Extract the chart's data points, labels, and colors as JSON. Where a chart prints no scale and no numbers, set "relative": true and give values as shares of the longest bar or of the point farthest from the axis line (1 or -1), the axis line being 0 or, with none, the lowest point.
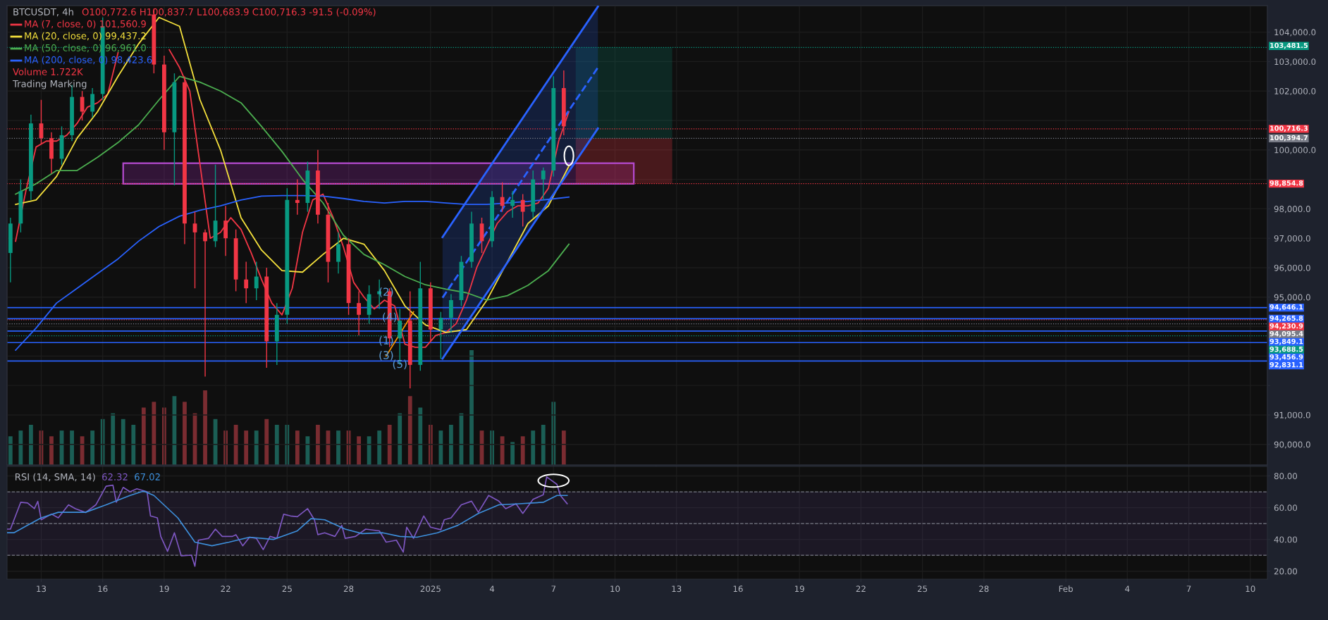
{
  "chart_data": [
    {
      "type": "candlestick",
      "title": "BTCUSDT, 4h",
      "subtitle": "O100,772.6 H100,837.7 L100,683.9 C100,716.3 -91.5 (-0.09%)",
      "x": [
        "2024-12-11T12:00",
        "2024-12-12T00:00",
        "2024-12-12T12:00",
        "2024-12-13T00:00",
        "2024-12-13T12:00",
        "2024-12-14T00:00",
        "2024-12-14T12:00",
        "2024-12-15T00:00",
        "2024-12-15T12:00",
        "2024-12-16T00:00",
        "2024-12-18T12:00",
        "2024-12-19T00:00",
        "2024-12-19T12:00",
        "2024-12-20T00:00",
        "2024-12-20T12:00",
        "2024-12-21T00:00",
        "2024-12-21T12:00",
        "2024-12-22T00:00",
        "2024-12-22T12:00",
        "2024-12-23T00:00",
        "2024-12-23T12:00",
        "2024-12-24T00:00",
        "2024-12-24T12:00",
        "2024-12-25T00:00",
        "2024-12-25T12:00",
        "2024-12-26T00:00",
        "2024-12-26T12:00",
        "2024-12-27T00:00",
        "2024-12-27T12:00",
        "2024-12-28T00:00",
        "2024-12-28T12:00",
        "2024-12-29T00:00",
        "2024-12-29T12:00",
        "2024-12-30T00:00",
        "2024-12-30T12:00",
        "2024-12-31T00:00",
        "2024-12-31T12:00",
        "2025-01-01T00:00",
        "2025-01-01T12:00",
        "2025-01-02T00:00",
        "2025-01-02T12:00",
        "2025-01-03T00:00",
        "2025-01-03T12:00",
        "2025-01-04T00:00",
        "2025-01-04T12:00",
        "2025-01-05T00:00",
        "2025-01-05T12:00",
        "2025-01-06T00:00",
        "2025-01-06T12:00",
        "2025-01-07T00:00",
        "2025-01-07T12:00"
      ],
      "ohlc": [
        [
          96500,
          97700,
          95500,
          97500
        ],
        [
          97500,
          99000,
          97200,
          98600
        ],
        [
          98600,
          101200,
          98300,
          100900
        ],
        [
          100900,
          101700,
          100200,
          100400
        ],
        [
          100400,
          100600,
          99200,
          99700
        ],
        [
          99700,
          100800,
          99500,
          100500
        ],
        [
          100500,
          102200,
          100300,
          101800
        ],
        [
          101800,
          102000,
          101000,
          101300
        ],
        [
          101300,
          102100,
          101100,
          101900
        ],
        [
          101900,
          104500,
          101700,
          104200
        ],
        [
          104600,
          104800,
          102600,
          102900
        ],
        [
          102900,
          103200,
          100000,
          100600
        ],
        [
          100600,
          102600,
          98800,
          102300
        ],
        [
          102300,
          102500,
          96800,
          97500
        ],
        [
          97500,
          97900,
          95300,
          97200
        ],
        [
          97200,
          97300,
          92300,
          96900
        ],
        [
          96900,
          99500,
          96700,
          97600
        ],
        [
          97600,
          98100,
          96400,
          97000
        ],
        [
          97000,
          97300,
          95200,
          95600
        ],
        [
          95600,
          96200,
          94800,
          95300
        ],
        [
          95300,
          96200,
          94900,
          95700
        ],
        [
          95700,
          96000,
          92600,
          93500
        ],
        [
          93500,
          94800,
          92700,
          94400
        ],
        [
          94400,
          98700,
          94100,
          98300
        ],
        [
          98300,
          99000,
          97800,
          98200
        ],
        [
          98200,
          99600,
          97900,
          99300
        ],
        [
          99300,
          100000,
          97500,
          97800
        ],
        [
          97800,
          98200,
          95500,
          96200
        ],
        [
          96200,
          97200,
          95800,
          96800
        ],
        [
          96800,
          97000,
          94400,
          94800
        ],
        [
          94800,
          95200,
          93700,
          94400
        ],
        [
          94400,
          95400,
          94100,
          95100
        ],
        [
          95100,
          95600,
          94600,
          95200
        ],
        [
          95200,
          95300,
          93300,
          93600
        ],
        [
          93600,
          94600,
          92700,
          94200
        ],
        [
          94200,
          95200,
          91900,
          92700
        ],
        [
          92700,
          96200,
          92500,
          95300
        ],
        [
          95300,
          95500,
          93500,
          93900
        ],
        [
          93900,
          94500,
          92900,
          94300
        ],
        [
          94300,
          95100,
          93800,
          94900
        ],
        [
          94900,
          96400,
          94700,
          96200
        ],
        [
          96200,
          97900,
          96000,
          97500
        ],
        [
          97500,
          97700,
          96500,
          96900
        ],
        [
          96900,
          98600,
          96700,
          98400
        ],
        [
          98400,
          98900,
          97900,
          98100
        ],
        [
          98100,
          98600,
          97700,
          98300
        ],
        [
          98300,
          98500,
          97400,
          97900
        ],
        [
          97900,
          99300,
          97700,
          99000
        ],
        [
          99000,
          99400,
          98300,
          99300
        ],
        [
          99300,
          102500,
          99100,
          102100
        ],
        [
          102100,
          102700,
          100500,
          100800
        ]
      ],
      "colors": [
        "#089981",
        "#089981",
        "#089981",
        "#f23645",
        "#f23645",
        "#089981",
        "#089981",
        "#f23645",
        "#089981",
        "#089981",
        "#f23645",
        "#f23645",
        "#089981",
        "#f23645",
        "#f23645",
        "#f23645",
        "#089981",
        "#f23645",
        "#f23645",
        "#f23645",
        "#089981",
        "#f23645",
        "#089981",
        "#089981",
        "#f23645",
        "#089981",
        "#f23645",
        "#f23645",
        "#089981",
        "#f23645",
        "#f23645",
        "#089981",
        "#089981",
        "#f23645",
        "#089981",
        "#f23645",
        "#089981",
        "#f23645",
        "#089981",
        "#089981",
        "#089981",
        "#089981",
        "#f23645",
        "#089981",
        "#f23645",
        "#089981",
        "#f23645",
        "#089981",
        "#089981",
        "#089981",
        "#f23645"
      ],
      "series": [
        {
          "type": "line",
          "name": "MA (7, close, 0) 101,560.9",
          "color": "#f23645",
          "x": [
            "2024-12-11T18:00",
            "2024-12-12T06:00",
            "2024-12-12T18:00",
            "2024-12-13T06:00",
            "2024-12-13T18:00",
            "2024-12-14T06:00",
            "2024-12-14T18:00",
            "2024-12-15T06:00",
            "2024-12-15T18:00",
            "2024-12-16T06:00",
            "2024-12-16T18:00",
            "2024-12-17T06:00",
            "2024-12-17T18:00",
            "2024-12-18T06:00",
            "2024-12-18T18:00",
            "2024-12-19T06:00",
            "2024-12-19T18:00",
            "2024-12-20T06:00",
            "2024-12-20T18:00",
            "2024-12-21T06:00",
            "2024-12-21T18:00",
            "2024-12-22T06:00",
            "2024-12-22T18:00",
            "2024-12-23T06:00",
            "2024-12-23T18:00",
            "2024-12-24T06:00",
            "2024-12-24T18:00",
            "2024-12-25T06:00",
            "2024-12-25T18:00",
            "2024-12-26T06:00",
            "2024-12-26T18:00",
            "2024-12-27T06:00",
            "2024-12-27T18:00",
            "2024-12-28T06:00",
            "2024-12-28T18:00",
            "2024-12-29T06:00",
            "2024-12-29T18:00",
            "2024-12-30T06:00",
            "2024-12-30T18:00",
            "2024-12-31T06:00",
            "2024-12-31T18:00",
            "2025-01-01T06:00",
            "2025-01-01T18:00",
            "2025-01-02T06:00",
            "2025-01-02T18:00",
            "2025-01-03T06:00",
            "2025-01-03T18:00",
            "2025-01-04T06:00",
            "2025-01-04T18:00",
            "2025-01-05T06:00",
            "2025-01-05T18:00",
            "2025-01-06T06:00",
            "2025-01-06T18:00",
            "2025-01-07T06:00",
            "2025-01-07T18:00"
          ],
          "values": [
            96900,
            98600,
            100100,
            100300,
            100300,
            100500,
            100900,
            101450,
            101600,
            101900,
            103300,
            null,
            null,
            null,
            null,
            103400,
            102800,
            102000,
            99500,
            97000,
            97200,
            97700,
            97300,
            96500,
            95600,
            94800,
            94400,
            95300,
            97200,
            98300,
            98500,
            97700,
            96700,
            95500,
            95000,
            94600,
            94900,
            94700,
            93400,
            93300,
            93300,
            93700,
            93800,
            94100,
            94900,
            96000,
            96750,
            97500,
            97900,
            98100,
            98100,
            98200,
            98700,
            100300,
            101300
          ]
        },
        {
          "type": "line",
          "name": "MA (20, close, 0) 99,437.2",
          "color": "#f5e13c",
          "x": [
            "2024-12-11T18:00",
            "2024-12-12T18:00",
            "2024-12-13T18:00",
            "2024-12-14T18:00",
            "2024-12-15T18:00",
            "2024-12-16T18:00",
            "2024-12-17T18:00",
            "2024-12-18T18:00",
            "2024-12-19T18:00",
            "2024-12-20T18:00",
            "2024-12-21T18:00",
            "2024-12-22T18:00",
            "2024-12-23T18:00",
            "2024-12-24T18:00",
            "2024-12-25T18:00",
            "2024-12-26T18:00",
            "2024-12-27T18:00",
            "2024-12-28T18:00",
            "2024-12-29T18:00",
            "2024-12-30T18:00",
            "2024-12-31T18:00",
            "2025-01-01T18:00",
            "2025-01-02T18:00",
            "2025-01-03T18:00",
            "2025-01-04T18:00",
            "2025-01-05T18:00",
            "2025-01-06T18:00",
            "2025-01-07T18:00"
          ],
          "values": [
            98150,
            98300,
            99100,
            100400,
            101300,
            102500,
            103600,
            104500,
            104200,
            101700,
            100000,
            97700,
            96600,
            95900,
            95850,
            96450,
            97000,
            96800,
            95900,
            94700,
            94060,
            93800,
            93900,
            94900,
            96200,
            97500,
            98100,
            99450
          ]
        },
        {
          "type": "line",
          "name": "MA (50, close, 0) 96,961.0",
          "color": "#4caf50",
          "x": [
            "2024-12-11T18:00",
            "2024-12-12T18:00",
            "2024-12-13T18:00",
            "2024-12-14T18:00",
            "2024-12-15T18:00",
            "2024-12-16T18:00",
            "2024-12-17T18:00",
            "2024-12-18T18:00",
            "2024-12-19T18:00",
            "2024-12-20T18:00",
            "2024-12-21T18:00",
            "2024-12-22T18:00",
            "2024-12-23T18:00",
            "2024-12-24T18:00",
            "2024-12-25T18:00",
            "2024-12-26T18:00",
            "2024-12-27T18:00",
            "2024-12-28T18:00",
            "2024-12-29T18:00",
            "2024-12-30T18:00",
            "2024-12-31T18:00",
            "2025-01-01T18:00",
            "2025-01-02T18:00",
            "2025-01-03T18:00",
            "2025-01-04T18:00",
            "2025-01-05T18:00",
            "2025-01-06T18:00",
            "2025-01-07T18:00"
          ],
          "values": [
            98500,
            98850,
            99300,
            99300,
            99750,
            100250,
            100850,
            101700,
            102500,
            102300,
            102000,
            101600,
            100800,
            99950,
            99000,
            98200,
            97100,
            96450,
            96100,
            95700,
            95420,
            95270,
            95150,
            94900,
            95050,
            95400,
            95900,
            96800
          ]
        },
        {
          "type": "line",
          "name": "MA (200, close, 0) 98,423.6",
          "color": "#2962ff",
          "x": [
            "2024-12-11T18:00",
            "2024-12-12T18:00",
            "2024-12-13T18:00",
            "2024-12-14T18:00",
            "2024-12-15T18:00",
            "2024-12-16T18:00",
            "2024-12-17T18:00",
            "2024-12-18T18:00",
            "2024-12-19T18:00",
            "2024-12-20T18:00",
            "2024-12-21T18:00",
            "2024-12-22T18:00",
            "2024-12-23T18:00",
            "2024-12-24T18:00",
            "2024-12-25T18:00",
            "2024-12-26T18:00",
            "2024-12-27T18:00",
            "2024-12-28T18:00",
            "2024-12-29T18:00",
            "2024-12-30T18:00",
            "2024-12-31T18:00",
            "2025-01-01T18:00",
            "2025-01-02T18:00",
            "2025-01-03T18:00",
            "2025-01-04T18:00",
            "2025-01-05T18:00",
            "2025-01-06T18:00",
            "2025-01-07T18:00"
          ],
          "values": [
            93200,
            93950,
            94800,
            95300,
            95800,
            96300,
            96900,
            97400,
            97750,
            97950,
            98100,
            98300,
            98430,
            98450,
            98450,
            98430,
            98350,
            98250,
            98200,
            98250,
            98250,
            98200,
            98150,
            98150,
            98200,
            98250,
            98320,
            98400
          ]
        },
        {
          "type": "line",
          "color": "#2962ff",
          "line_style": "solid",
          "x": [
            "2025-01-01T14:00",
            "2025-01-09T04:00"
          ],
          "values": [
            97040,
            104870
          ]
        },
        {
          "type": "line",
          "color": "#2962ff",
          "line_style": "dashed",
          "x": [
            "2025-01-01T14:00",
            "2025-01-09T04:00"
          ],
          "values": [
            94980,
            102800
          ],
          "lower": [
            92910,
            100730
          ],
          "upper": [
            97040,
            104870
          ]
        },
        {
          "type": "line",
          "color": "#2962ff",
          "line_style": "solid",
          "x": [
            "2025-01-01T14:00",
            "2025-01-09T04:00"
          ],
          "values": [
            92910,
            100730
          ]
        },
        {
          "type": "line",
          "color": "#ff9800",
          "x": [
            "2024-12-29T20:00",
            "2024-12-31T04:00"
          ],
          "values": [
            93000,
            94500
          ]
        }
      ],
      "annotations": [
        "Trading Marking",
        {
          "text": "(2)",
          "x": "2024-12-29T20:00",
          "y": 95150
        },
        {
          "text": "(4)",
          "x": "2024-12-30T00:00",
          "y": 94300
        },
        {
          "text": "(1)",
          "x": "2024-12-29T20:00",
          "y": 93500
        },
        {
          "text": "(3)",
          "x": "2024-12-29T20:00",
          "y": 93000
        },
        {
          "text": "(5)",
          "x": "2024-12-30T12:00",
          "y": 92700
        }
      ],
      "ref_lines": [
        {
          "axis": "y",
          "value": 103481.5,
          "label": "103,481.5",
          "color": "#089981",
          "line_style": "dotted"
        },
        {
          "axis": "y",
          "value": 100716.3,
          "label": "100,716.3",
          "color": "#f23645",
          "line_style": "dotted"
        },
        {
          "axis": "y",
          "value": 100394.7,
          "label": "100,394.7",
          "color": "#787b86",
          "line_style": "dotted"
        },
        {
          "axis": "y",
          "value": 98854.8,
          "label": "98,854.8",
          "color": "#f23645",
          "line_style": "dotted"
        },
        {
          "axis": "y",
          "value": 94646.1,
          "label": "94,646.1",
          "color": "#2962ff",
          "line_style": "solid"
        },
        {
          "axis": "y",
          "value": 94265.8,
          "label": "94,265.8",
          "color": "#2962ff",
          "line_style": "solid"
        },
        {
          "axis": "y",
          "value": 94230.9,
          "label": "94,230.9",
          "color": "#f23645",
          "line_style": "dotted"
        },
        {
          "axis": "y",
          "value": 94095.4,
          "label": "94,095.4",
          "color": "#787b86",
          "line_style": "dotted"
        },
        {
          "axis": "y",
          "value": 93849.1,
          "label": "93,849.1",
          "color": "#2962ff",
          "line_style": "solid"
        },
        {
          "axis": "y",
          "value": 93688.5,
          "label": "93,688.5",
          "color": "#089981",
          "line_style": "dotted"
        },
        {
          "axis": "y",
          "value": 93456.9,
          "label": "93,456.9",
          "color": "#2962ff",
          "line_style": "solid"
        },
        {
          "axis": "y",
          "value": 92831.1,
          "label": "92,831.1",
          "color": "#2962ff",
          "line_style": "solid"
        }
      ],
      "xlim": [
        "2024-12-11T08:00",
        "2025-02-10T20:00"
      ],
      "xticks": [
        {
          "value": "2024-12-13",
          "label": null
        },
        {
          "value": "2024-12-16",
          "label": null
        },
        {
          "value": "2024-12-19",
          "label": null
        },
        {
          "value": "2024-12-22",
          "label": null
        },
        {
          "value": "2024-12-25",
          "label": null
        },
        {
          "value": "2024-12-28",
          "label": null
        },
        {
          "value": "2025-01-01",
          "label": null
        },
        {
          "value": "2025-01-04",
          "label": null
        },
        {
          "value": "2025-01-07",
          "label": null
        },
        {
          "value": "2025-01-10",
          "label": null
        },
        {
          "value": "2025-01-13",
          "label": null
        },
        {
          "value": "2025-01-16",
          "label": null
        },
        {
          "value": "2025-01-19",
          "label": null
        },
        {
          "value": "2025-01-22",
          "label": null
        },
        {
          "value": "2025-01-25",
          "label": null
        },
        {
          "value": "2025-01-28",
          "label": null
        },
        {
          "value": "2025-02-01",
          "label": null
        },
        {
          "value": "2025-02-04",
          "label": null
        },
        {
          "value": "2025-02-07",
          "label": null
        },
        {
          "value": "2025-02-10",
          "label": null
        }
      ],
      "ylim": [
        89300,
        104900
      ],
      "yticks": [
        {
          "value": 90000,
          "label": "90,000.0"
        },
        {
          "value": 91000,
          "label": "91,000.0"
        },
        {
          "value": 92000,
          "label": null
        },
        {
          "value": 93000,
          "label": null
        },
        {
          "value": 94000,
          "label": null
        },
        {
          "value": 95000,
          "label": "95,000.0"
        },
        {
          "value": 96000,
          "label": "96,000.0"
        },
        {
          "value": 97000,
          "label": "97,000.0"
        },
        {
          "value": 98000,
          "label": "98,000.0"
        },
        {
          "value": 99000,
          "label": null
        },
        {
          "value": 100000,
          "label": "100,000.0"
        },
        {
          "value": 101000,
          "label": null
        },
        {
          "value": 102000,
          "label": "102,000.0"
        },
        {
          "value": 103000,
          "label": "103,000.0"
        },
        {
          "value": 104000,
          "label": "104,000.0"
        }
      ],
      "grid": true,
      "legend": "top left",
      "tick_labels": "y"
    },
    {
      "type": "bar",
      "title": "Volume 1.722K",
      "relative": true,
      "tick_labels": false,
      "x": [
        "2024-12-11T12:00",
        "2024-12-12T00:00",
        "2024-12-12T12:00",
        "2024-12-13T00:00",
        "2024-12-13T12:00",
        "2024-12-14T00:00",
        "2024-12-14T12:00",
        "2024-12-15T00:00",
        "2024-12-15T12:00",
        "2024-12-16T00:00",
        "2024-12-16T12:00",
        "2024-12-17T00:00",
        "2024-12-17T12:00",
        "2024-12-18T00:00",
        "2024-12-18T12:00",
        "2024-12-19T00:00",
        "2024-12-19T12:00",
        "2024-12-20T00:00",
        "2024-12-20T12:00",
        "2024-12-21T00:00",
        "2024-12-21T12:00",
        "2024-12-22T00:00",
        "2024-12-22T12:00",
        "2024-12-23T00:00",
        "2024-12-23T12:00",
        "2024-12-24T00:00",
        "2024-12-24T12:00",
        "2024-12-25T00:00",
        "2024-12-25T12:00",
        "2024-12-26T00:00",
        "2024-12-26T12:00",
        "2024-12-27T00:00",
        "2024-12-27T12:00",
        "2024-12-28T00:00",
        "2024-12-28T12:00",
        "2024-12-29T00:00",
        "2024-12-29T12:00",
        "2024-12-30T00:00",
        "2024-12-30T12:00",
        "2024-12-31T00:00",
        "2024-12-31T12:00",
        "2025-01-01T00:00",
        "2025-01-01T12:00",
        "2025-01-02T00:00",
        "2025-01-02T12:00",
        "2025-01-03T00:00",
        "2025-01-03T12:00",
        "2025-01-04T00:00",
        "2025-01-04T12:00",
        "2025-01-05T00:00",
        "2025-01-05T12:00",
        "2025-01-06T00:00",
        "2025-01-06T12:00",
        "2025-01-07T00:00",
        "2025-01-07T12:00"
      ],
      "values": [
        0.25,
        0.3,
        0.35,
        0.3,
        0.25,
        0.3,
        0.3,
        0.25,
        0.3,
        0.4,
        0.45,
        0.4,
        0.35,
        0.5,
        0.55,
        0.5,
        0.6,
        0.55,
        0.45,
        0.65,
        0.4,
        0.3,
        0.35,
        0.3,
        0.3,
        0.4,
        0.35,
        0.35,
        0.3,
        0.25,
        0.35,
        0.3,
        0.3,
        0.3,
        0.25,
        0.25,
        0.3,
        0.35,
        0.45,
        0.6,
        0.5,
        0.35,
        0.3,
        0.35,
        0.45,
        1.0,
        0.3,
        0.3,
        0.25,
        0.2,
        0.25,
        0.3,
        0.35,
        0.55,
        0.3
      ],
      "colors": [
        "#1b5e55",
        "#1b5e55",
        "#1b5e55",
        "#7a2c31",
        "#7a2c31",
        "#1b5e55",
        "#1b5e55",
        "#7a2c31",
        "#1b5e55",
        "#1b5e55",
        "#1b5e55",
        "#1b5e55",
        "#1b5e55",
        "#7a2c31",
        "#7a2c31",
        "#7a2c31",
        "#1b5e55",
        "#7a2c31",
        "#7a2c31",
        "#7a2c31",
        "#1b5e55",
        "#7a2c31",
        "#7a2c31",
        "#7a2c31",
        "#1b5e55",
        "#7a2c31",
        "#1b5e55",
        "#1b5e55",
        "#7a2c31",
        "#1b5e55",
        "#7a2c31",
        "#7a2c31",
        "#1b5e55",
        "#7a2c31",
        "#7a2c31",
        "#1b5e55",
        "#1b5e55",
        "#7a2c31",
        "#1b5e55",
        "#7a2c31",
        "#1b5e55",
        "#7a2c31",
        "#1b5e55",
        "#1b5e55",
        "#1b5e55",
        "#1b5e55",
        "#7a2c31",
        "#1b5e55",
        "#7a2c31",
        "#1b5e55",
        "#7a2c31",
        "#1b5e55",
        "#1b5e55",
        "#1b5e55",
        "#7a2c31"
      ],
      "xlim": [
        "2024-12-11T08:00",
        "2025-02-10T20:00"
      ]
    },
    {
      "type": "line",
      "title": "RSI (14, SMA, 14)",
      "legend": "top left",
      "grid": true,
      "series": [
        {
          "name": "62.32",
          "color": "#7e57c2",
          "x": [
            "2024-12-11T08:00",
            "2024-12-11T12:00",
            "2024-12-12T00:00",
            "2024-12-12T08:00",
            "2024-12-12T16:00",
            "2024-12-12T20:00",
            "2024-12-13T00:00",
            "2024-12-13T12:00",
            "2024-12-13T20:00",
            "2024-12-14T08:00",
            "2024-12-14T16:00",
            "2024-12-15T04:00",
            "2024-12-15T16:00",
            "2024-12-16T04:00",
            "2024-12-16T12:00",
            "2024-12-16T16:00",
            "2024-12-17T00:00",
            "2024-12-17T08:00",
            "2024-12-17T16:00",
            "2024-12-18T04:00",
            "2024-12-18T08:00",
            "2024-12-18T16:00",
            "2024-12-18T20:00",
            "2024-12-19T04:00",
            "2024-12-19T12:00",
            "2024-12-19T20:00",
            "2024-12-20T08:00",
            "2024-12-20T12:00",
            "2024-12-20T16:00",
            "2024-12-21T04:00",
            "2024-12-21T12:00",
            "2024-12-21T20:00",
            "2024-12-22T08:00",
            "2024-12-22T12:00",
            "2024-12-22T20:00",
            "2024-12-23T04:00",
            "2024-12-23T12:00",
            "2024-12-23T20:00",
            "2024-12-24T04:00",
            "2024-12-24T12:00",
            "2024-12-24T20:00",
            "2024-12-25T04:00",
            "2024-12-25T12:00",
            "2024-12-26T00:00",
            "2024-12-26T08:00",
            "2024-12-26T12:00",
            "2024-12-26T20:00",
            "2024-12-27T08:00",
            "2024-12-27T16:00",
            "2024-12-27T20:00",
            "2024-12-28T08:00",
            "2024-12-28T20:00",
            "2024-12-29T12:00",
            "2024-12-29T20:00",
            "2024-12-30T08:00",
            "2024-12-30T16:00",
            "2024-12-30T20:00",
            "2024-12-31T04:00",
            "2024-12-31T16:00",
            "2025-01-01T00:00",
            "2025-01-01T12:00",
            "2025-01-01T16:00",
            "2025-01-02T00:00",
            "2025-01-02T12:00",
            "2025-01-03T00:00",
            "2025-01-03T08:00",
            "2025-01-03T20:00",
            "2025-01-04T08:00",
            "2025-01-04T16:00",
            "2025-01-05T04:00",
            "2025-01-05T12:00",
            "2025-01-06T00:00",
            "2025-01-06T12:00",
            "2025-01-06T16:00",
            "2025-01-07T04:00",
            "2025-01-07T08:00",
            "2025-01-07T16:00"
          ],
          "values": [
            46.5,
            46.5,
            63.4,
            63,
            59.4,
            64,
            52.4,
            56,
            53.6,
            61.8,
            59.4,
            57,
            61.8,
            73.5,
            74.2,
            63.4,
            72.8,
            70,
            71.9,
            70,
            54.8,
            53.6,
            41.9,
            32.5,
            44.2,
            29.7,
            30.1,
            23.1,
            39.5,
            40.7,
            46.5,
            41.9,
            41.9,
            43,
            36,
            41.4,
            40.7,
            33.6,
            41.9,
            40.7,
            55.9,
            54.8,
            54.3,
            59.4,
            52.4,
            43,
            44.2,
            41.9,
            48.9,
            40.7,
            41.9,
            46.5,
            45.4,
            38.3,
            39.5,
            32,
            47.7,
            40.7,
            54.8,
            47.7,
            46.1,
            52.4,
            53.6,
            61.8,
            64.1,
            57.1,
            67.7,
            64.1,
            59.4,
            62.5,
            56.4,
            65.3,
            68.1,
            79.4,
            74.7,
            67.7,
            62.5
          ]
        },
        {
          "name": "67.02",
          "color": "#3d8fdb",
          "x": [
            "2024-12-11T08:00",
            "2024-12-11T16:00",
            "2024-12-12T08:00",
            "2024-12-13T00:00",
            "2024-12-13T20:00",
            "2024-12-15T04:00",
            "2024-12-16T04:00",
            "2024-12-17T08:00",
            "2024-12-18T00:00",
            "2024-12-18T12:00",
            "2024-12-19T16:00",
            "2024-12-20T12:00",
            "2024-12-21T08:00",
            "2024-12-22T04:00",
            "2024-12-23T04:00",
            "2024-12-24T08:00",
            "2024-12-25T12:00",
            "2024-12-26T04:00",
            "2024-12-26T20:00",
            "2024-12-27T20:00",
            "2024-12-28T16:00",
            "2024-12-29T16:00",
            "2024-12-30T12:00",
            "2024-12-31T08:00",
            "2025-01-01T08:00",
            "2025-01-02T08:00",
            "2025-01-03T08:00",
            "2025-01-04T08:00",
            "2025-01-05T08:00",
            "2025-01-06T12:00",
            "2025-01-07T04:00",
            "2025-01-07T16:00"
          ],
          "values": [
            44.2,
            44.2,
            48.9,
            53.6,
            57.1,
            57.1,
            61.8,
            67.7,
            70.5,
            67.7,
            53.6,
            38.3,
            36,
            38.3,
            41.4,
            40,
            45.4,
            53.1,
            52.4,
            46.5,
            43.7,
            44.2,
            41.9,
            41.4,
            44.2,
            48.9,
            56.4,
            61.8,
            62.5,
            63.4,
            67.7,
            67.7
          ]
        }
      ],
      "ref_lines": [
        {
          "axis": "y",
          "value": 70,
          "color": "#787b86",
          "line_style": "dashed"
        },
        {
          "axis": "y",
          "value": 50,
          "color": "#787b86",
          "line_style": "dashed"
        },
        {
          "axis": "y",
          "value": 30,
          "color": "#787b86",
          "line_style": "dashed"
        }
      ],
      "bands": [
        {
          "axis": "y",
          "from": 30,
          "to": 70,
          "color": "#7e57c2"
        }
      ],
      "xlim": [
        "2024-12-11T08:00",
        "2025-02-10T20:00"
      ],
      "xticks": [
        {
          "value": "2024-12-13",
          "label": "13"
        },
        {
          "value": "2024-12-16",
          "label": "16"
        },
        {
          "value": "2024-12-19",
          "label": "19"
        },
        {
          "value": "2024-12-22",
          "label": "22"
        },
        {
          "value": "2024-12-25",
          "label": "25"
        },
        {
          "value": "2024-12-28",
          "label": "28"
        },
        {
          "value": "2025-01-01",
          "label": "2025"
        },
        {
          "value": "2025-01-04",
          "label": "4"
        },
        {
          "value": "2025-01-07",
          "label": "7"
        },
        {
          "value": "2025-01-10",
          "label": "10"
        },
        {
          "value": "2025-01-13",
          "label": "13"
        },
        {
          "value": "2025-01-16",
          "label": "16"
        },
        {
          "value": "2025-01-19",
          "label": "19"
        },
        {
          "value": "2025-01-22",
          "label": "22"
        },
        {
          "value": "2025-01-25",
          "label": "25"
        },
        {
          "value": "2025-01-28",
          "label": "28"
        },
        {
          "value": "2025-02-01",
          "label": "Feb"
        },
        {
          "value": "2025-02-04",
          "label": "4"
        },
        {
          "value": "2025-02-07",
          "label": "7"
        },
        {
          "value": "2025-02-10",
          "label": "10"
        }
      ],
      "ylim": [
        15,
        86
      ],
      "yticks": [
        {
          "value": 20,
          "label": "20.00"
        },
        {
          "value": 40,
          "label": "40.00"
        },
        {
          "value": 60,
          "label": "60.00"
        },
        {
          "value": 80,
          "label": "80.00"
        }
      ]
    }
  ]
}
